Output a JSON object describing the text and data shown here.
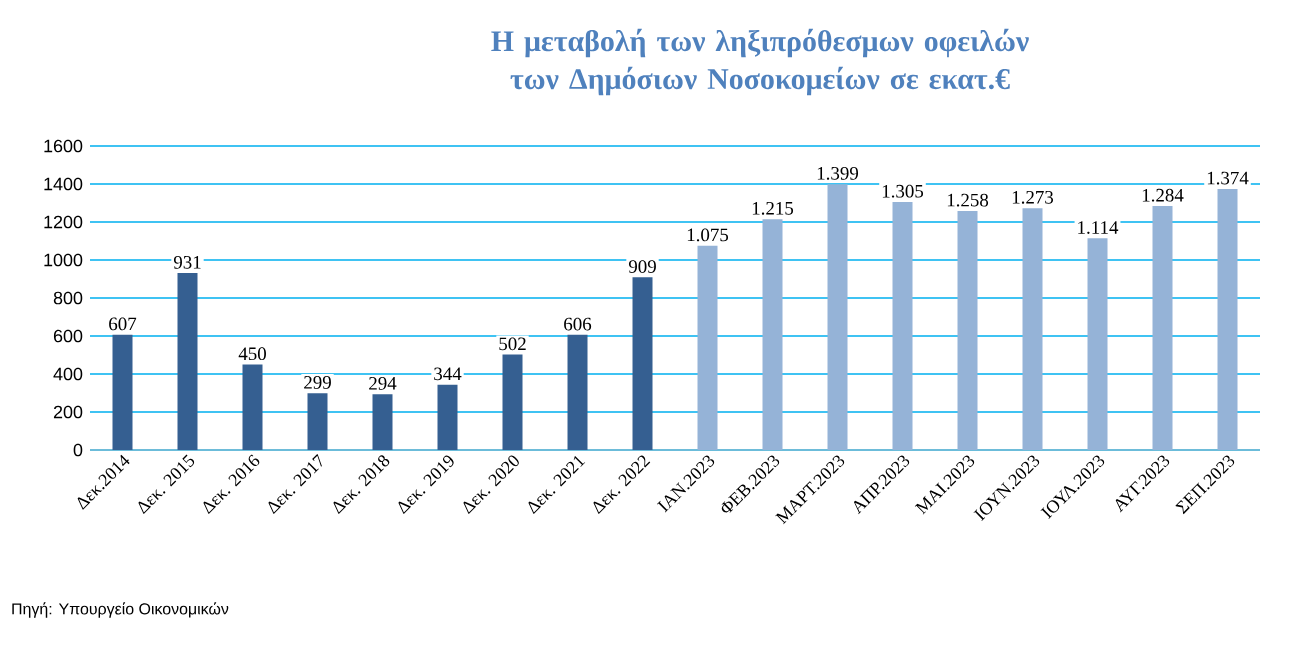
{
  "chart_data": {
    "type": "bar",
    "title": "Η μεταβολή των ληξιπρόθεσμων οφειλών των Δημόσιων Νοσοκομείων σε εκατ.€",
    "categories": [
      "Δεκ.2014",
      "Δεκ. 2015",
      "Δεκ. 2016",
      "Δεκ. 2017",
      "Δεκ. 2018",
      "Δεκ. 2019",
      "Δεκ. 2020",
      "Δεκ. 2021",
      "Δεκ. 2022",
      "ΙΑΝ.2023",
      "ΦΕΒ.2023",
      "ΜΑΡΤ.2023",
      "ΑΠΡ.2023",
      "ΜΑΙ.2023",
      "ΙΟΥΝ.2023",
      "ΙΟΥΛ.2023",
      "ΑΥΓ.2023",
      "ΣΕΠ.2023"
    ],
    "values": [
      607,
      931,
      450,
      299,
      294,
      344,
      502,
      606,
      909,
      1075,
      1215,
      1399,
      1305,
      1258,
      1273,
      1114,
      1284,
      1374
    ],
    "value_labels": [
      "607",
      "931",
      "450",
      "299",
      "294",
      "344",
      "502",
      "606",
      "909",
      "1.075",
      "1.215",
      "1.399",
      "1.305",
      "1.258",
      "1.273",
      "1.114",
      "1.284",
      "1.374"
    ],
    "colors": [
      "#355F91",
      "#355F91",
      "#355F91",
      "#355F91",
      "#355F91",
      "#355F91",
      "#355F91",
      "#355F91",
      "#355F91",
      "#95B3D7",
      "#95B3D7",
      "#95B3D7",
      "#95B3D7",
      "#95B3D7",
      "#95B3D7",
      "#95B3D7",
      "#95B3D7",
      "#95B3D7"
    ],
    "ylim": [
      0,
      1600
    ],
    "yticks": [
      0,
      200,
      400,
      600,
      800,
      1000,
      1200,
      1400,
      1600
    ],
    "grid": "y",
    "annotations": [
      "Πηγή: Υπουργείο Οικονομικών"
    ]
  }
}
